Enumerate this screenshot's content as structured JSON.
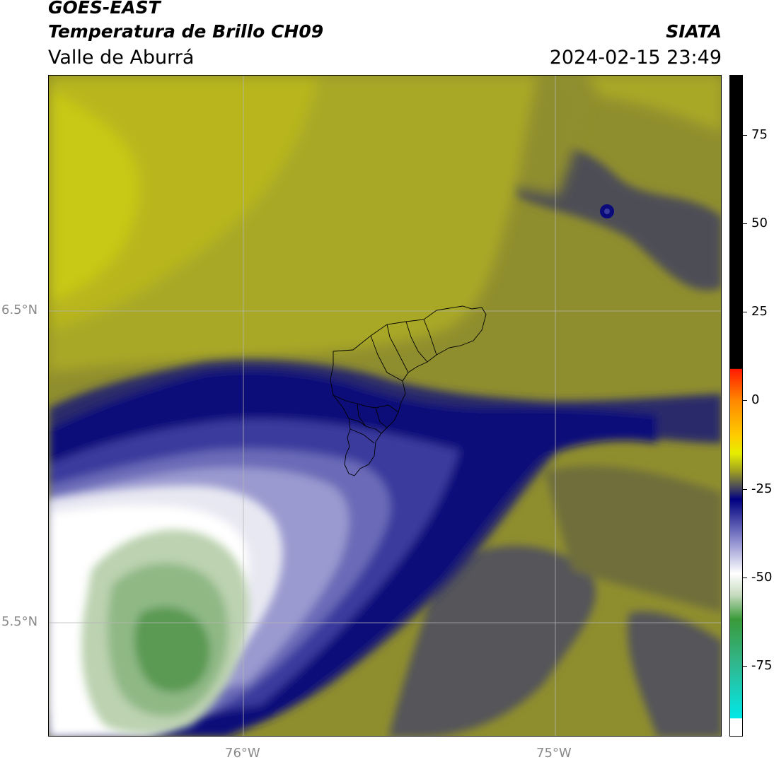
{
  "header": {
    "satellite": "GOES-EAST",
    "product": "Temperatura de Brillo CH09",
    "region": "Valle de Aburrá",
    "agency": "SIATA",
    "datetime": "2024-02-15 23:49"
  },
  "axes": {
    "lat_labels": [
      "6.5°N",
      "5.5°N"
    ],
    "lon_labels": [
      "76°W",
      "75°W"
    ]
  },
  "colorbar": {
    "ticks": [
      "75",
      "50",
      "25",
      "0",
      "-25",
      "-50",
      "-75"
    ],
    "tick_values": [
      75,
      50,
      25,
      0,
      -25,
      -50,
      -75
    ],
    "range": [
      -95,
      92
    ],
    "stops": [
      {
        "value": 92,
        "color": "#000000"
      },
      {
        "value": 9,
        "color": "#000000"
      },
      {
        "value": 8.9,
        "color": "#ff1a00"
      },
      {
        "value": 0,
        "color": "#ff8800"
      },
      {
        "value": -10,
        "color": "#ffcc00"
      },
      {
        "value": -15,
        "color": "#e6ee00"
      },
      {
        "value": -20,
        "color": "#a0a020"
      },
      {
        "value": -25,
        "color": "#404060"
      },
      {
        "value": -28,
        "color": "#000080"
      },
      {
        "value": -40,
        "color": "#9090d0"
      },
      {
        "value": -49,
        "color": "#ffffff"
      },
      {
        "value": -55,
        "color": "#c8dcc0"
      },
      {
        "value": -62,
        "color": "#3a9a3a"
      },
      {
        "value": -75,
        "color": "#30b890"
      },
      {
        "value": -90,
        "color": "#00e8e8"
      },
      {
        "value": -90.1,
        "color": "#ffffff"
      },
      {
        "value": -95,
        "color": "#ffffff"
      }
    ]
  },
  "map": {
    "palette": {
      "yellow_bright": "#c8c814",
      "yellow": "#a9a826",
      "olive": "#8f8e2e",
      "olive_dark": "#6f6e3a",
      "grey": "#4e4e56",
      "navy": "#0a0a7a",
      "blue": "#3b3b9e",
      "lavender": "#9a9ad0",
      "white": "#ffffff",
      "green_light": "#bcd2b0",
      "green": "#8fb885",
      "green_dark": "#5a9a52"
    },
    "boundary_color": "#000000",
    "grid_color": "#b4b4b4"
  }
}
